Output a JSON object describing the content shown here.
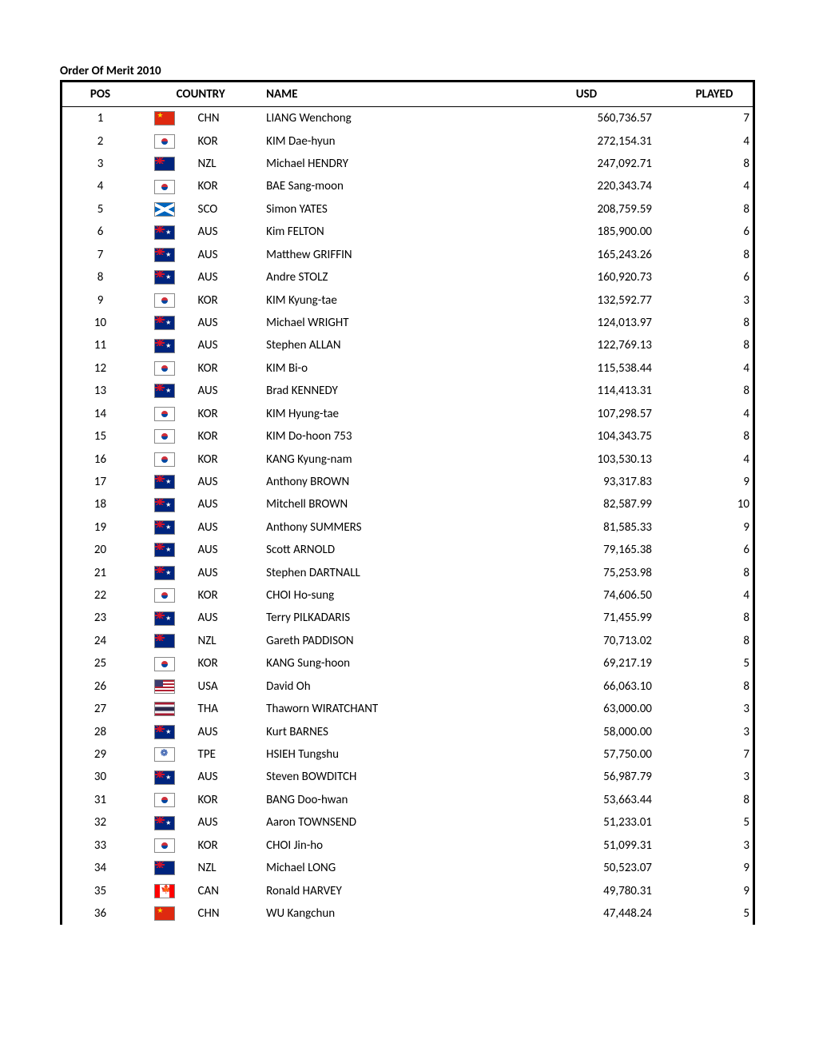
{
  "title": "Order Of Merit 2010",
  "columns": {
    "pos": "POS",
    "country": "COUNTRY",
    "name": "NAME",
    "usd": "USD",
    "played": "PLAYED"
  },
  "rows": [
    {
      "pos": "1",
      "cc": "CHN",
      "name": "LIANG Wenchong",
      "usd": "560,736.57",
      "played": "7"
    },
    {
      "pos": "2",
      "cc": "KOR",
      "name": "KIM Dae-hyun",
      "usd": "272,154.31",
      "played": "4"
    },
    {
      "pos": "3",
      "cc": "NZL",
      "name": "Michael HENDRY",
      "usd": "247,092.71",
      "played": "8"
    },
    {
      "pos": "4",
      "cc": "KOR",
      "name": "BAE Sang-moon",
      "usd": "220,343.74",
      "played": "4"
    },
    {
      "pos": "5",
      "cc": "SCO",
      "name": "Simon YATES",
      "usd": "208,759.59",
      "played": "8"
    },
    {
      "pos": "6",
      "cc": "AUS",
      "name": "Kim FELTON",
      "usd": "185,900.00",
      "played": "6"
    },
    {
      "pos": "7",
      "cc": "AUS",
      "name": "Matthew GRIFFIN",
      "usd": "165,243.26",
      "played": "8"
    },
    {
      "pos": "8",
      "cc": "AUS",
      "name": "Andre STOLZ",
      "usd": "160,920.73",
      "played": "6"
    },
    {
      "pos": "9",
      "cc": "KOR",
      "name": "KIM Kyung-tae",
      "usd": "132,592.77",
      "played": "3"
    },
    {
      "pos": "10",
      "cc": "AUS",
      "name": "Michael WRIGHT",
      "usd": "124,013.97",
      "played": "8"
    },
    {
      "pos": "11",
      "cc": "AUS",
      "name": "Stephen ALLAN",
      "usd": "122,769.13",
      "played": "8"
    },
    {
      "pos": "12",
      "cc": "KOR",
      "name": "KIM Bi-o",
      "usd": "115,538.44",
      "played": "4"
    },
    {
      "pos": "13",
      "cc": "AUS",
      "name": "Brad KENNEDY",
      "usd": "114,413.31",
      "played": "8"
    },
    {
      "pos": "14",
      "cc": "KOR",
      "name": "KIM Hyung-tae",
      "usd": "107,298.57",
      "played": "4"
    },
    {
      "pos": "15",
      "cc": "KOR",
      "name": "KIM Do-hoon 753",
      "usd": "104,343.75",
      "played": "8"
    },
    {
      "pos": "16",
      "cc": "KOR",
      "name": "KANG Kyung-nam",
      "usd": "103,530.13",
      "played": "4"
    },
    {
      "pos": "17",
      "cc": "AUS",
      "name": "Anthony BROWN",
      "usd": "93,317.83",
      "played": "9"
    },
    {
      "pos": "18",
      "cc": "AUS",
      "name": "Mitchell BROWN",
      "usd": "82,587.99",
      "played": "10"
    },
    {
      "pos": "19",
      "cc": "AUS",
      "name": "Anthony SUMMERS",
      "usd": "81,585.33",
      "played": "9"
    },
    {
      "pos": "20",
      "cc": "AUS",
      "name": "Scott ARNOLD",
      "usd": "79,165.38",
      "played": "6"
    },
    {
      "pos": "21",
      "cc": "AUS",
      "name": "Stephen DARTNALL",
      "usd": "75,253.98",
      "played": "8"
    },
    {
      "pos": "22",
      "cc": "KOR",
      "name": "CHOI Ho-sung",
      "usd": "74,606.50",
      "played": "4"
    },
    {
      "pos": "23",
      "cc": "AUS",
      "name": "Terry PILKADARIS",
      "usd": "71,455.99",
      "played": "8"
    },
    {
      "pos": "24",
      "cc": "NZL",
      "name": "Gareth PADDISON",
      "usd": "70,713.02",
      "played": "8"
    },
    {
      "pos": "25",
      "cc": "KOR",
      "name": "KANG Sung-hoon",
      "usd": "69,217.19",
      "played": "5"
    },
    {
      "pos": "26",
      "cc": "USA",
      "name": "David Oh",
      "usd": "66,063.10",
      "played": "8"
    },
    {
      "pos": "27",
      "cc": "THA",
      "name": "Thaworn WIRATCHANT",
      "usd": "63,000.00",
      "played": "3"
    },
    {
      "pos": "28",
      "cc": "AUS",
      "name": "Kurt BARNES",
      "usd": "58,000.00",
      "played": "3"
    },
    {
      "pos": "29",
      "cc": "TPE",
      "name": "HSIEH Tungshu",
      "usd": "57,750.00",
      "played": "7"
    },
    {
      "pos": "30",
      "cc": "AUS",
      "name": "Steven BOWDITCH",
      "usd": "56,987.79",
      "played": "3"
    },
    {
      "pos": "31",
      "cc": "KOR",
      "name": "BANG Doo-hwan",
      "usd": "53,663.44",
      "played": "8"
    },
    {
      "pos": "32",
      "cc": "AUS",
      "name": "Aaron TOWNSEND",
      "usd": "51,233.01",
      "played": "5"
    },
    {
      "pos": "33",
      "cc": "KOR",
      "name": "CHOI Jin-ho",
      "usd": "51,099.31",
      "played": "3"
    },
    {
      "pos": "34",
      "cc": "NZL",
      "name": "Michael LONG",
      "usd": "50,523.07",
      "played": "9"
    },
    {
      "pos": "35",
      "cc": "CAN",
      "name": "Ronald HARVEY",
      "usd": "49,780.31",
      "played": "9"
    },
    {
      "pos": "36",
      "cc": "CHN",
      "name": "WU Kangchun",
      "usd": "47,448.24",
      "played": "5"
    }
  ]
}
